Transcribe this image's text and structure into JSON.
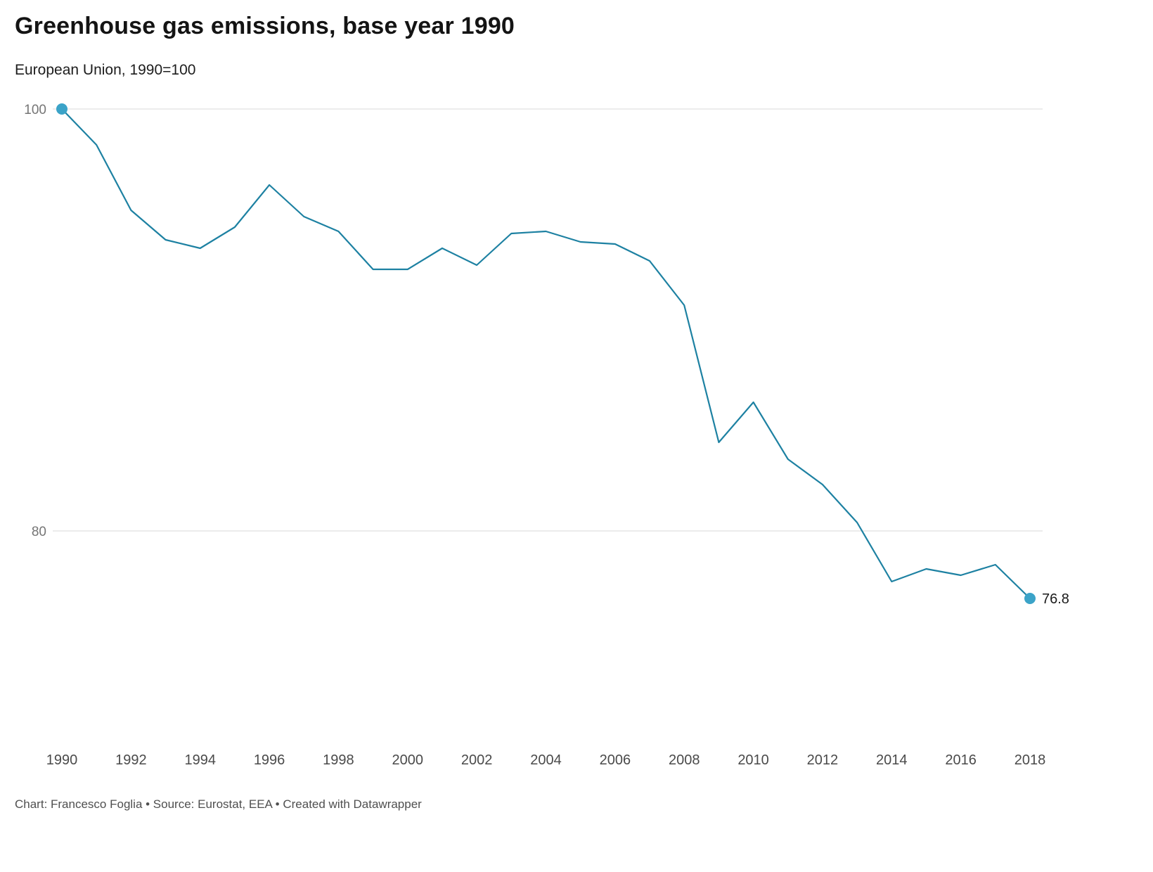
{
  "header": {
    "title": "Greenhouse gas emissions, base year 1990",
    "subtitle": "European Union, 1990=100"
  },
  "footer": {
    "text": "Chart: Francesco Foglia • Source: Eurostat, EEA • Created with Datawrapper"
  },
  "chart_data": {
    "type": "line",
    "title": "Greenhouse gas emissions, base year 1990",
    "subtitle": "European Union, 1990=100",
    "series_name": "EU greenhouse gas emissions index (1990=100)",
    "x": [
      1990,
      1991,
      1992,
      1993,
      1994,
      1995,
      1996,
      1997,
      1998,
      1999,
      2000,
      2001,
      2002,
      2003,
      2004,
      2005,
      2006,
      2007,
      2008,
      2009,
      2010,
      2011,
      2012,
      2013,
      2014,
      2015,
      2016,
      2017,
      2018
    ],
    "values": [
      100,
      98.3,
      95.2,
      93.8,
      93.4,
      94.4,
      96.4,
      94.9,
      94.2,
      92.4,
      92.4,
      93.4,
      92.6,
      94.1,
      94.2,
      93.7,
      93.6,
      92.8,
      90.7,
      84.2,
      86.1,
      83.4,
      82.2,
      80.4,
      77.6,
      78.2,
      77.9,
      78.4,
      76.8
    ],
    "x_ticks": [
      1990,
      1992,
      1994,
      1996,
      1998,
      2000,
      2002,
      2004,
      2006,
      2008,
      2010,
      2012,
      2014,
      2016,
      2018
    ],
    "y_ticks": [
      80,
      100
    ],
    "ylim": [
      69,
      100
    ],
    "xlim": [
      1990,
      2018
    ],
    "end_label": "76.8",
    "start_value_label": "100",
    "line_color": "#1d81a2",
    "point_color": "#3ba3c8",
    "gridline_color": "#d9d9d9",
    "grid": "horizontal",
    "legend": "none"
  }
}
